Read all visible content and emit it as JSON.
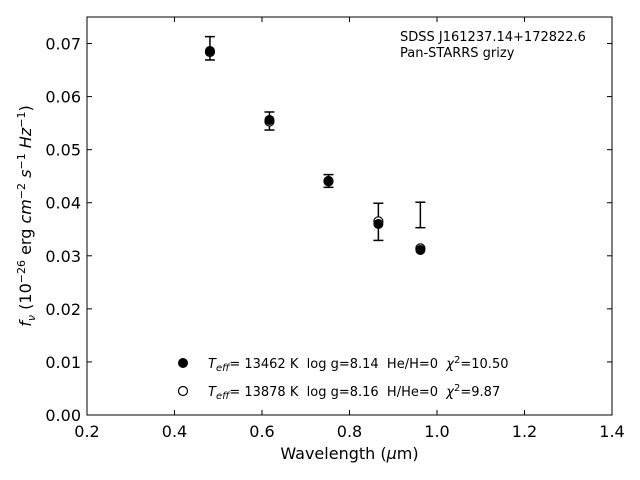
{
  "chart_data": {
    "type": "scatter",
    "title": "",
    "xlabel": "Wavelength (μm)",
    "ylabel": "f_ν (10^-26 erg cm^-2 s^-1 Hz^-1)",
    "xlim": [
      0.2,
      1.4
    ],
    "ylim": [
      0.0,
      0.075
    ],
    "x_ticks": [
      0.2,
      0.4,
      0.6,
      0.8,
      1.0,
      1.2,
      1.4
    ],
    "x_tick_labels": [
      "0.2",
      "0.4",
      "0.6",
      "0.8",
      "1.0",
      "1.2",
      "1.4"
    ],
    "y_ticks": [
      0.0,
      0.01,
      0.02,
      0.03,
      0.04,
      0.05,
      0.06,
      0.07
    ],
    "y_tick_labels": [
      "0.00",
      "0.01",
      "0.02",
      "0.03",
      "0.04",
      "0.05",
      "0.06",
      "0.07"
    ],
    "grid": false,
    "legend_placement": "lower-center",
    "annotations": [
      "SDSS J161237.14+172822.6",
      "Pan-STARRS grizy"
    ],
    "observed": {
      "x": [
        0.481,
        0.617,
        0.752,
        0.866,
        0.962
      ],
      "y": [
        0.0691,
        0.0554,
        0.0441,
        0.0364,
        0.0377
      ],
      "err": [
        0.0022,
        0.0017,
        0.0012,
        0.0035,
        0.0024
      ]
    },
    "series": [
      {
        "marker": "filled",
        "x": [
          0.481,
          0.617,
          0.752,
          0.866,
          0.962
        ],
        "y": [
          0.0686,
          0.0556,
          0.044,
          0.036,
          0.0311
        ],
        "label_parts": [
          "T",
          "eff",
          "= 13462 K  log g=8.14  He/H=0  ",
          "χ",
          "2",
          "=10.50"
        ]
      },
      {
        "marker": "open",
        "x": [
          0.481,
          0.617,
          0.752,
          0.866,
          0.962
        ],
        "y": [
          0.0684,
          0.0553,
          0.0441,
          0.0365,
          0.0314
        ],
        "label_parts": [
          "T",
          "eff",
          "= 13878 K  log g=8.16  H/He=0  ",
          "χ",
          "2",
          "=9.87"
        ]
      }
    ]
  }
}
